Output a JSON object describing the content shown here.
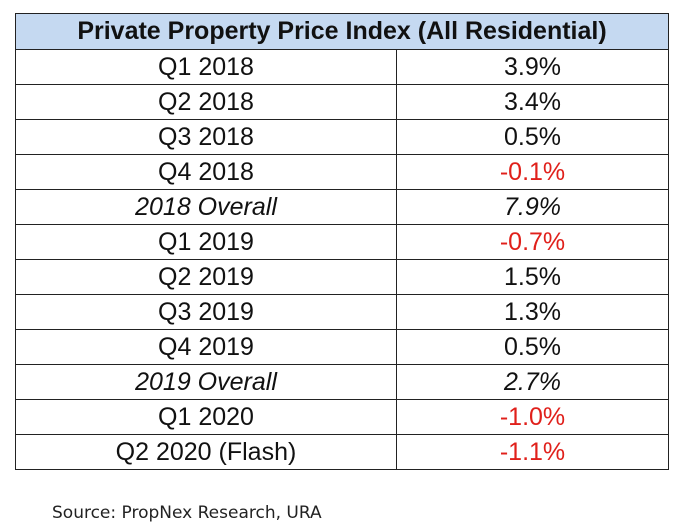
{
  "title": "Private Property Price Index (All Residential)",
  "rows": [
    {
      "period": "Q1 2018",
      "change": "3.9%",
      "negative": false,
      "overall": false
    },
    {
      "period": "Q2 2018",
      "change": "3.4%",
      "negative": false,
      "overall": false
    },
    {
      "period": "Q3 2018",
      "change": "0.5%",
      "negative": false,
      "overall": false
    },
    {
      "period": "Q4 2018",
      "change": "-0.1%",
      "negative": true,
      "overall": false
    },
    {
      "period": "2018 Overall",
      "change": "7.9%",
      "negative": false,
      "overall": true
    },
    {
      "period": "Q1 2019",
      "change": "-0.7%",
      "negative": true,
      "overall": false
    },
    {
      "period": "Q2 2019",
      "change": "1.5%",
      "negative": false,
      "overall": false
    },
    {
      "period": "Q3 2019",
      "change": "1.3%",
      "negative": false,
      "overall": false
    },
    {
      "period": "Q4 2019",
      "change": "0.5%",
      "negative": false,
      "overall": false
    },
    {
      "period": "2019 Overall",
      "change": "2.7%",
      "negative": false,
      "overall": true
    },
    {
      "period": "Q1 2020",
      "change": "-1.0%",
      "negative": true,
      "overall": false
    },
    {
      "period": "Q2 2020 (Flash)",
      "change": "-1.1%",
      "negative": true,
      "overall": false
    }
  ],
  "colors": {
    "header_bg": "#c5d9f1",
    "negative": "#e0201b"
  },
  "source": "Source: PropNex Research, URA"
}
